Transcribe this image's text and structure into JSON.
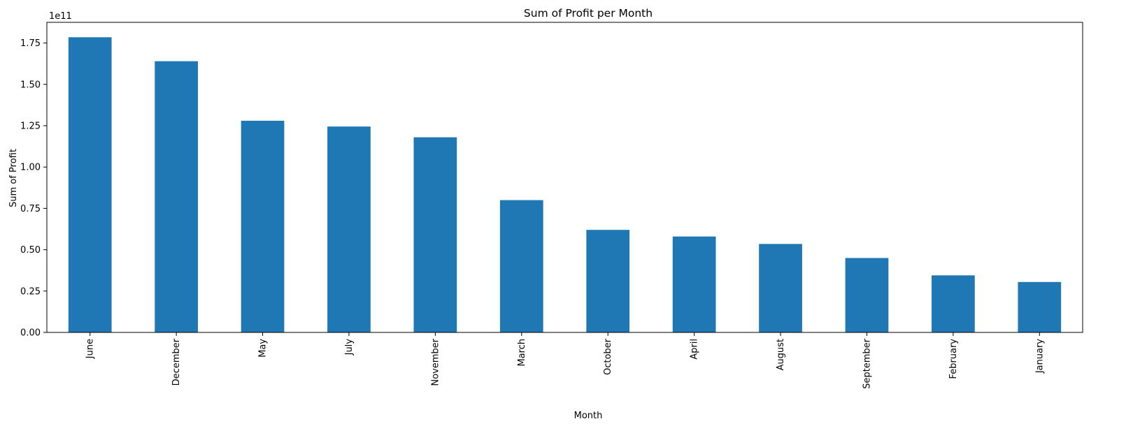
{
  "chart_data": {
    "type": "bar",
    "title": "Sum of Profit per Month",
    "xlabel": "Month",
    "ylabel": "Sum of Profit",
    "y_offset_label": "1e11",
    "y_scale": 100000000000,
    "categories": [
      "June",
      "December",
      "May",
      "July",
      "November",
      "March",
      "October",
      "April",
      "August",
      "September",
      "February",
      "January"
    ],
    "values": [
      1.785,
      1.64,
      1.28,
      1.245,
      1.18,
      0.8,
      0.62,
      0.58,
      0.535,
      0.45,
      0.345,
      0.305
    ],
    "ylim": [
      0,
      1.875
    ],
    "yticks": [
      "0.00",
      "0.25",
      "0.50",
      "0.75",
      "1.00",
      "1.25",
      "1.50",
      "1.75"
    ],
    "ytick_values": [
      0,
      0.25,
      0.5,
      0.75,
      1.0,
      1.25,
      1.5,
      1.75
    ],
    "bar_color": "#1f77b4",
    "grid": false,
    "legend": "none"
  }
}
